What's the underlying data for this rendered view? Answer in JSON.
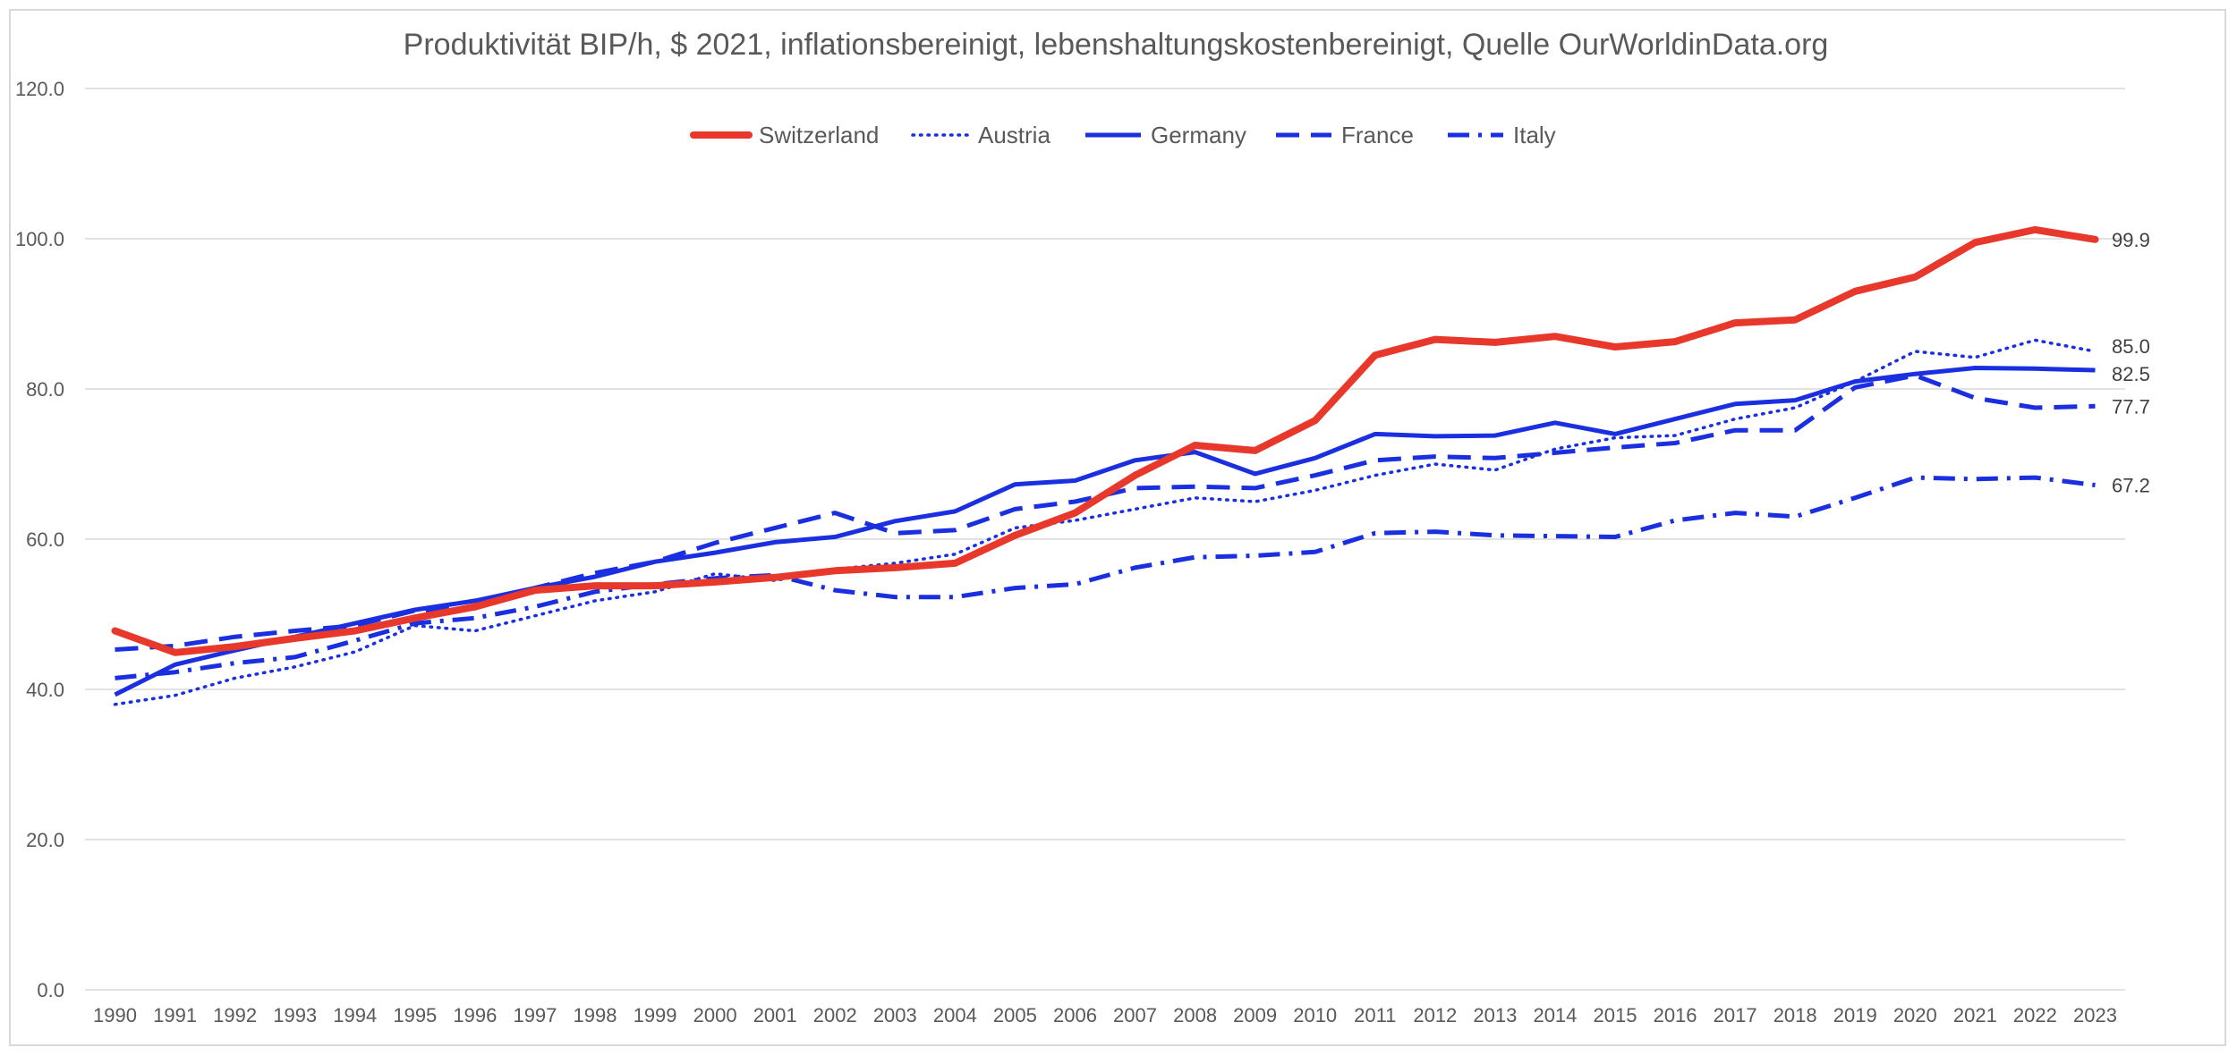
{
  "chart_data": {
    "type": "line",
    "title": "Produktivität BIP/h, $ 2021, inflationsbereinigt, lebenshaltungskostenbereinigt, Quelle OurWorldinData.org",
    "xlabel": "",
    "ylabel": "",
    "ylim": [
      0,
      120
    ],
    "y_ticks": [
      "0.0",
      "20.0",
      "40.0",
      "60.0",
      "80.0",
      "100.0",
      "120.0"
    ],
    "grid": true,
    "legend_position": "top",
    "x": [
      "1990",
      "1991",
      "1992",
      "1993",
      "1994",
      "1995",
      "1996",
      "1997",
      "1998",
      "1999",
      "2000",
      "2001",
      "2002",
      "2003",
      "2004",
      "2005",
      "2006",
      "2007",
      "2008",
      "2009",
      "2010",
      "2011",
      "2012",
      "2013",
      "2014",
      "2015",
      "2016",
      "2017",
      "2018",
      "2019",
      "2020",
      "2021",
      "2022",
      "2023"
    ],
    "series": [
      {
        "name": "Switzerland",
        "color": "#e8382c",
        "style": "solid-thick",
        "end_label": "99.9",
        "values": [
          47.8,
          44.9,
          45.7,
          46.8,
          47.8,
          49.5,
          51.0,
          53.2,
          53.8,
          53.8,
          54.3,
          54.9,
          55.8,
          56.2,
          56.8,
          60.5,
          63.5,
          68.5,
          72.5,
          71.8,
          75.8,
          84.5,
          86.6,
          86.2,
          87.0,
          85.6,
          86.3,
          88.8,
          89.2,
          93.0,
          94.9,
          99.5,
          101.2,
          99.9
        ]
      },
      {
        "name": "Austria",
        "color": "#1a2fe0",
        "style": "dotted",
        "end_label": "85.0",
        "values": [
          38.0,
          39.2,
          41.5,
          43.0,
          45.0,
          48.5,
          47.8,
          49.8,
          51.8,
          53.0,
          55.4,
          54.5,
          56.0,
          56.8,
          58.0,
          61.5,
          62.5,
          64.0,
          65.5,
          65.0,
          66.5,
          68.5,
          70.0,
          69.2,
          72.0,
          73.5,
          73.8,
          76.0,
          77.5,
          81.0,
          85.0,
          84.2,
          86.5,
          85.0
        ]
      },
      {
        "name": "Germany",
        "color": "#1a2fe0",
        "style": "solid",
        "end_label": "82.5",
        "values": [
          39.3,
          43.3,
          45.2,
          47.0,
          48.8,
          50.6,
          51.8,
          53.5,
          55.0,
          57.0,
          58.2,
          59.6,
          60.3,
          62.4,
          63.7,
          67.3,
          67.8,
          70.5,
          71.6,
          68.7,
          70.8,
          74.0,
          73.7,
          73.8,
          75.5,
          74.0,
          76.0,
          78.0,
          78.5,
          81.0,
          82.0,
          82.8,
          82.7,
          82.5
        ]
      },
      {
        "name": "France",
        "color": "#1a2fe0",
        "style": "dashed",
        "end_label": "77.7",
        "values": [
          45.3,
          45.8,
          47.0,
          47.8,
          48.5,
          50.5,
          50.8,
          53.5,
          55.5,
          57.0,
          59.5,
          61.5,
          63.5,
          60.8,
          61.2,
          64.0,
          65.0,
          66.8,
          67.0,
          66.8,
          68.5,
          70.5,
          71.0,
          70.8,
          71.5,
          72.2,
          72.8,
          74.5,
          74.5,
          80.2,
          81.8,
          78.8,
          77.5,
          77.7
        ]
      },
      {
        "name": "Italy",
        "color": "#1a2fe0",
        "style": "dash-dot",
        "end_label": "67.2",
        "values": [
          41.5,
          42.3,
          43.5,
          44.3,
          46.5,
          48.8,
          49.5,
          51.0,
          53.0,
          54.0,
          54.8,
          55.2,
          53.2,
          52.3,
          52.3,
          53.5,
          54.0,
          56.2,
          57.6,
          57.8,
          58.3,
          60.8,
          61.0,
          60.5,
          60.4,
          60.3,
          62.5,
          63.5,
          63.0,
          65.5,
          68.2,
          68.0,
          68.2,
          67.2
        ]
      }
    ]
  }
}
